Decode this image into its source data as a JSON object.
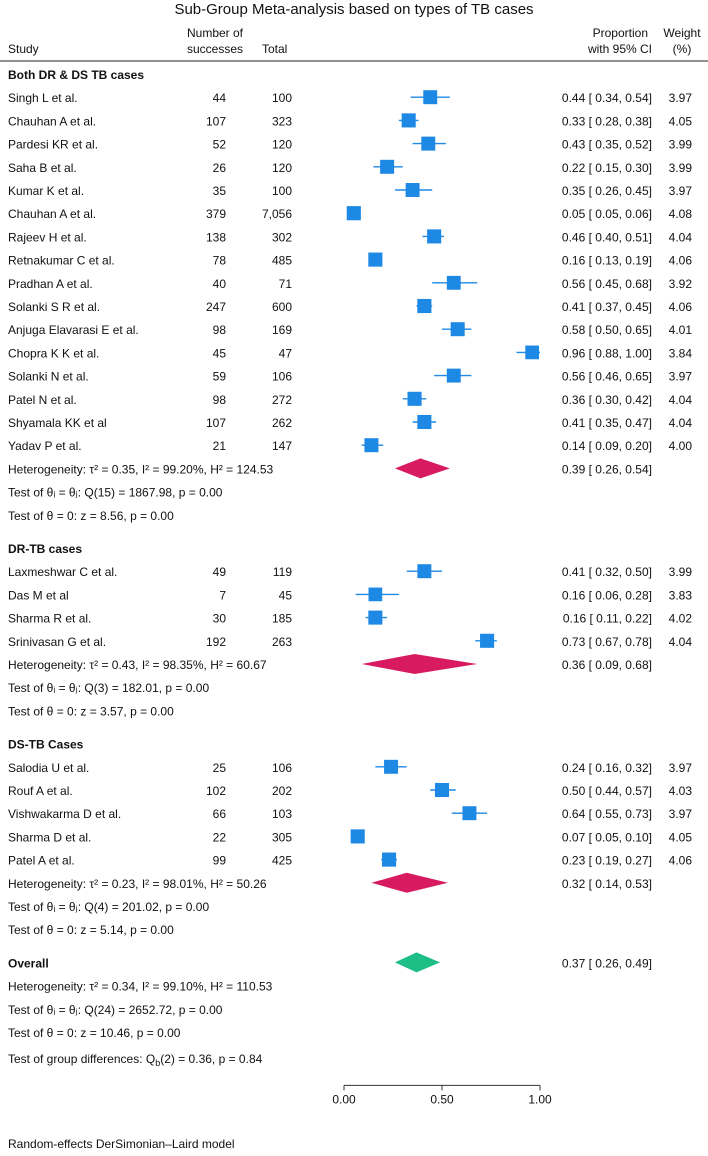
{
  "chart_data": {
    "type": "forest",
    "title": "Sub-Group Meta-analysis based on types of TB cases",
    "columns": {
      "study": "Study",
      "successes_l1": "Number of",
      "successes_l2": "successes",
      "total": "Total",
      "proportion_l1": "Proportion",
      "proportion_l2": "with 95% CI",
      "weight_l1": "Weight",
      "weight_l2": "(%)"
    },
    "xaxis": {
      "min": 0,
      "max": 1,
      "ticks": [
        0,
        0.5,
        1
      ],
      "tick_labels": [
        "0.00",
        "0.50",
        "1.00"
      ]
    },
    "groups": [
      {
        "name": "Both DR & DS TB cases",
        "studies": [
          {
            "study": "Singh L et al.",
            "successes": "44",
            "total": "100",
            "est": 0.44,
            "lo": 0.34,
            "hi": 0.54,
            "ci_text": "0.44 [ 0.34, 0.54]",
            "weight": 3.97,
            "weight_text": "3.97"
          },
          {
            "study": "Chauhan A et al.",
            "successes": "107",
            "total": "323",
            "est": 0.33,
            "lo": 0.28,
            "hi": 0.38,
            "ci_text": "0.33 [ 0.28, 0.38]",
            "weight": 4.05,
            "weight_text": "4.05"
          },
          {
            "study": "Pardesi KR et al.",
            "successes": "52",
            "total": "120",
            "est": 0.43,
            "lo": 0.35,
            "hi": 0.52,
            "ci_text": "0.43 [ 0.35, 0.52]",
            "weight": 3.99,
            "weight_text": "3.99"
          },
          {
            "study": "Saha B et al.",
            "successes": "26",
            "total": "120",
            "est": 0.22,
            "lo": 0.15,
            "hi": 0.3,
            "ci_text": "0.22 [ 0.15, 0.30]",
            "weight": 3.99,
            "weight_text": "3.99"
          },
          {
            "study": "Kumar K et al.",
            "successes": "35",
            "total": "100",
            "est": 0.35,
            "lo": 0.26,
            "hi": 0.45,
            "ci_text": "0.35 [ 0.26, 0.45]",
            "weight": 3.97,
            "weight_text": "3.97"
          },
          {
            "study": "Chauhan A et al.",
            "successes": "379",
            "total": "7,056",
            "est": 0.05,
            "lo": 0.05,
            "hi": 0.06,
            "ci_text": "0.05 [ 0.05, 0.06]",
            "weight": 4.08,
            "weight_text": "4.08"
          },
          {
            "study": "Rajeev H et al.",
            "successes": "138",
            "total": "302",
            "est": 0.46,
            "lo": 0.4,
            "hi": 0.51,
            "ci_text": "0.46 [ 0.40, 0.51]",
            "weight": 4.04,
            "weight_text": "4.04"
          },
          {
            "study": "Retnakumar C et al.",
            "successes": "78",
            "total": "485",
            "est": 0.16,
            "lo": 0.13,
            "hi": 0.19,
            "ci_text": "0.16 [ 0.13, 0.19]",
            "weight": 4.06,
            "weight_text": "4.06"
          },
          {
            "study": "Pradhan A et al.",
            "successes": "40",
            "total": "71",
            "est": 0.56,
            "lo": 0.45,
            "hi": 0.68,
            "ci_text": "0.56 [ 0.45, 0.68]",
            "weight": 3.92,
            "weight_text": "3.92"
          },
          {
            "study": "Solanki S R et al.",
            "successes": "247",
            "total": "600",
            "est": 0.41,
            "lo": 0.37,
            "hi": 0.45,
            "ci_text": "0.41 [ 0.37, 0.45]",
            "weight": 4.06,
            "weight_text": "4.06"
          },
          {
            "study": "Anjuga Elavarasi E et al.",
            "successes": "98",
            "total": "169",
            "est": 0.58,
            "lo": 0.5,
            "hi": 0.65,
            "ci_text": "0.58 [ 0.50, 0.65]",
            "weight": 4.01,
            "weight_text": "4.01"
          },
          {
            "study": "Chopra K K et al.",
            "successes": "45",
            "total": "47",
            "est": 0.96,
            "lo": 0.88,
            "hi": 1.0,
            "ci_text": "0.96 [ 0.88, 1.00]",
            "weight": 3.84,
            "weight_text": "3.84"
          },
          {
            "study": "Solanki N et al.",
            "successes": "59",
            "total": "106",
            "est": 0.56,
            "lo": 0.46,
            "hi": 0.65,
            "ci_text": "0.56 [ 0.46, 0.65]",
            "weight": 3.97,
            "weight_text": "3.97"
          },
          {
            "study": "Patel N et al.",
            "successes": "98",
            "total": "272",
            "est": 0.36,
            "lo": 0.3,
            "hi": 0.42,
            "ci_text": "0.36 [ 0.30, 0.42]",
            "weight": 4.04,
            "weight_text": "4.04"
          },
          {
            "study": "Shyamala KK et al",
            "successes": "107",
            "total": "262",
            "est": 0.41,
            "lo": 0.35,
            "hi": 0.47,
            "ci_text": "0.41 [ 0.35, 0.47]",
            "weight": 4.04,
            "weight_text": "4.04"
          },
          {
            "study": "Yadav P et al.",
            "successes": "21",
            "total": "147",
            "est": 0.14,
            "lo": 0.09,
            "hi": 0.2,
            "ci_text": "0.14 [ 0.09, 0.20]",
            "weight": 4.0,
            "weight_text": "4.00"
          }
        ],
        "summary": {
          "label": "Heterogeneity: τ² = 0.35, I² = 99.20%, H² = 124.53",
          "est": 0.39,
          "lo": 0.26,
          "hi": 0.54,
          "ci_text": "0.39 [ 0.26, 0.54]"
        },
        "tests": [
          "Test of θᵢ = θⱼ: Q(15) = 1867.98, p = 0.00",
          "Test of θ = 0: z = 8.56, p = 0.00"
        ]
      },
      {
        "name": "DR-TB cases",
        "studies": [
          {
            "study": "Laxmeshwar C et al.",
            "successes": "49",
            "total": "119",
            "est": 0.41,
            "lo": 0.32,
            "hi": 0.5,
            "ci_text": "0.41 [ 0.32, 0.50]",
            "weight": 3.99,
            "weight_text": "3.99"
          },
          {
            "study": "Das M et al",
            "successes": "7",
            "total": "45",
            "est": 0.16,
            "lo": 0.06,
            "hi": 0.28,
            "ci_text": "0.16 [ 0.06, 0.28]",
            "weight": 3.83,
            "weight_text": "3.83"
          },
          {
            "study": "Sharma R et al.",
            "successes": "30",
            "total": "185",
            "est": 0.16,
            "lo": 0.11,
            "hi": 0.22,
            "ci_text": "0.16 [ 0.11, 0.22]",
            "weight": 4.02,
            "weight_text": "4.02"
          },
          {
            "study": "Srinivasan G et al.",
            "successes": "192",
            "total": "263",
            "est": 0.73,
            "lo": 0.67,
            "hi": 0.78,
            "ci_text": "0.73 [ 0.67, 0.78]",
            "weight": 4.04,
            "weight_text": "4.04"
          }
        ],
        "summary": {
          "label": "Heterogeneity: τ² = 0.43, I² = 98.35%, H² = 60.67",
          "est": 0.36,
          "lo": 0.09,
          "hi": 0.68,
          "ci_text": "0.36 [ 0.09, 0.68]"
        },
        "tests": [
          "Test of θᵢ = θⱼ: Q(3) = 182.01, p = 0.00",
          "Test of θ = 0: z = 3.57, p = 0.00"
        ]
      },
      {
        "name": "DS-TB Cases",
        "studies": [
          {
            "study": "Salodia U et al.",
            "successes": "25",
            "total": "106",
            "est": 0.24,
            "lo": 0.16,
            "hi": 0.32,
            "ci_text": "0.24 [ 0.16, 0.32]",
            "weight": 3.97,
            "weight_text": "3.97"
          },
          {
            "study": "Rouf A et al.",
            "successes": "102",
            "total": "202",
            "est": 0.5,
            "lo": 0.44,
            "hi": 0.57,
            "ci_text": "0.50 [ 0.44, 0.57]",
            "weight": 4.03,
            "weight_text": "4.03"
          },
          {
            "study": "Vishwakarma D et al.",
            "successes": "66",
            "total": "103",
            "est": 0.64,
            "lo": 0.55,
            "hi": 0.73,
            "ci_text": "0.64 [ 0.55, 0.73]",
            "weight": 3.97,
            "weight_text": "3.97"
          },
          {
            "study": "Sharma D et al.",
            "successes": "22",
            "total": "305",
            "est": 0.07,
            "lo": 0.05,
            "hi": 0.1,
            "ci_text": "0.07 [ 0.05, 0.10]",
            "weight": 4.05,
            "weight_text": "4.05"
          },
          {
            "study": "Patel A et al.",
            "successes": "99",
            "total": "425",
            "est": 0.23,
            "lo": 0.19,
            "hi": 0.27,
            "ci_text": "0.23 [ 0.19, 0.27]",
            "weight": 4.06,
            "weight_text": "4.06"
          }
        ],
        "summary": {
          "label": "Heterogeneity: τ² = 0.23, I² = 98.01%, H² = 50.26",
          "est": 0.32,
          "lo": 0.14,
          "hi": 0.53,
          "ci_text": "0.32 [ 0.14, 0.53]"
        },
        "tests": [
          "Test of θᵢ = θⱼ: Q(4) = 201.02, p = 0.00",
          "Test of θ = 0: z = 5.14, p = 0.00"
        ]
      }
    ],
    "overall": {
      "name": "Overall",
      "est": 0.37,
      "lo": 0.26,
      "hi": 0.49,
      "ci_text": "0.37 [ 0.26, 0.49]",
      "heterogeneity": "Heterogeneity: τ² = 0.34, I² = 99.10%, H² = 110.53",
      "tests": [
        "Test of θᵢ = θⱼ: Q(24) = 2652.72, p = 0.00",
        "Test of θ = 0: z = 10.46, p = 0.00"
      ]
    },
    "group_difference": "Test of group differences: Q_b(2) = 0.36, p = 0.84",
    "footnote": "Random-effects DerSimonian–Laird model",
    "colors": {
      "marker": "#1e88e5",
      "subgroup_diamond": "#d81b60",
      "overall_diamond": "#1dbf87",
      "text": "#111111",
      "axis": "#333333"
    }
  }
}
